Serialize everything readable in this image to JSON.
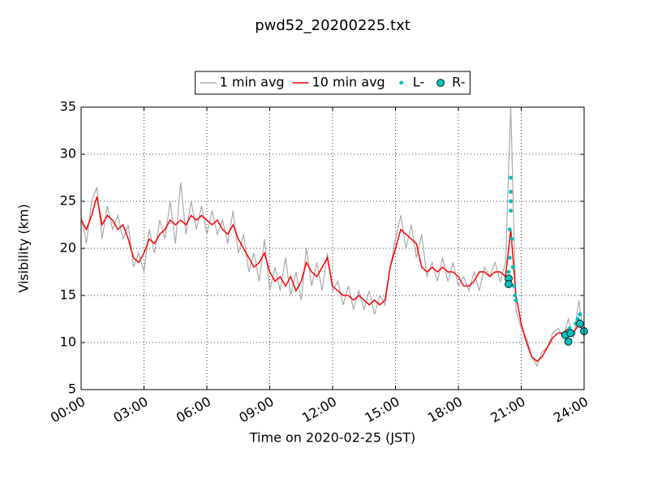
{
  "chart_data": {
    "type": "line",
    "title": "pwd52_20200225.txt",
    "xlabel": "Time on 2020-02-25 (JST)",
    "ylabel": "Visibility (km)",
    "xlim": [
      0,
      24
    ],
    "xticks": [
      {
        "value": 0,
        "label": "00:00"
      },
      {
        "value": 3,
        "label": "03:00"
      },
      {
        "value": 6,
        "label": "06:00"
      },
      {
        "value": 9,
        "label": "09:00"
      },
      {
        "value": 12,
        "label": "12:00"
      },
      {
        "value": 15,
        "label": "15:00"
      },
      {
        "value": 18,
        "label": "18:00"
      },
      {
        "value": 21,
        "label": "21:00"
      },
      {
        "value": 24,
        "label": "24:00"
      }
    ],
    "ylim": [
      5,
      35
    ],
    "yticks": [
      5,
      10,
      15,
      20,
      25,
      30,
      35
    ],
    "grid": true,
    "legend": "upper center",
    "series": [
      {
        "name": "1 min avg",
        "color": "#aaaaaa",
        "style": "line",
        "x": [
          0,
          0.25,
          0.5,
          0.75,
          1,
          1.25,
          1.5,
          1.75,
          2,
          2.25,
          2.5,
          2.75,
          3,
          3.25,
          3.5,
          3.75,
          4,
          4.25,
          4.5,
          4.75,
          5,
          5.25,
          5.5,
          5.75,
          6,
          6.25,
          6.5,
          6.75,
          7,
          7.25,
          7.5,
          7.75,
          8,
          8.25,
          8.5,
          8.75,
          9,
          9.25,
          9.5,
          9.75,
          10,
          10.25,
          10.5,
          10.75,
          11,
          11.25,
          11.5,
          11.75,
          12,
          12.25,
          12.5,
          12.75,
          13,
          13.25,
          13.5,
          13.75,
          14,
          14.25,
          14.5,
          14.75,
          15,
          15.25,
          15.5,
          15.75,
          16,
          16.25,
          16.5,
          16.75,
          17,
          17.25,
          17.5,
          17.75,
          18,
          18.25,
          18.5,
          18.75,
          19,
          19.25,
          19.5,
          19.75,
          20,
          20.25,
          20.5,
          20.75,
          21,
          21.25,
          21.5,
          21.75,
          22,
          22.25,
          22.5,
          22.75,
          23,
          23.25,
          23.5,
          23.75,
          24
        ],
        "values": [
          23.5,
          20.5,
          25,
          26.5,
          21,
          24.5,
          22,
          23.5,
          21,
          22.5,
          18,
          19.5,
          17.5,
          22,
          19.5,
          23,
          21,
          25,
          20.5,
          27,
          21.5,
          25,
          22,
          24.5,
          21.5,
          24,
          21.5,
          23,
          20.5,
          24,
          19.5,
          21.5,
          17.5,
          19.5,
          16.5,
          21,
          15.5,
          18,
          15.5,
          19,
          15,
          17.5,
          14.5,
          20,
          16,
          18.5,
          15.5,
          19.5,
          15.5,
          16.5,
          14,
          16,
          13.5,
          15.5,
          13.5,
          15.5,
          13,
          15,
          14,
          18,
          21,
          23.5,
          20,
          22.5,
          19,
          21.5,
          17,
          18.5,
          16.5,
          19,
          16.5,
          18.5,
          16,
          17,
          15.5,
          17.5,
          15.5,
          18,
          17,
          18.5,
          16.5,
          18.5,
          35,
          13.5,
          11.5,
          10.5,
          8.5,
          7.5,
          9,
          9.5,
          11,
          11.5,
          10.5,
          12.5,
          10.5,
          14.5,
          10.5
        ]
      },
      {
        "name": "10 min avg",
        "color": "#ff0000",
        "style": "line",
        "x": [
          0,
          0.25,
          0.5,
          0.75,
          1,
          1.25,
          1.5,
          1.75,
          2,
          2.25,
          2.5,
          2.75,
          3,
          3.25,
          3.5,
          3.75,
          4,
          4.25,
          4.5,
          4.75,
          5,
          5.25,
          5.5,
          5.75,
          6,
          6.25,
          6.5,
          6.75,
          7,
          7.25,
          7.5,
          7.75,
          8,
          8.25,
          8.5,
          8.75,
          9,
          9.25,
          9.5,
          9.75,
          10,
          10.25,
          10.5,
          10.75,
          11,
          11.25,
          11.5,
          11.75,
          12,
          12.25,
          12.5,
          12.75,
          13,
          13.25,
          13.5,
          13.75,
          14,
          14.25,
          14.5,
          14.75,
          15,
          15.25,
          15.5,
          15.75,
          16,
          16.25,
          16.5,
          16.75,
          17,
          17.25,
          17.5,
          17.75,
          18,
          18.25,
          18.5,
          18.75,
          19,
          19.25,
          19.5,
          19.75,
          20,
          20.25,
          20.5,
          20.75,
          21,
          21.25,
          21.5,
          21.75,
          22,
          22.25,
          22.5,
          22.75,
          23,
          23.25,
          23.5,
          23.75,
          24
        ],
        "values": [
          23,
          22,
          23.5,
          25.5,
          22.5,
          23.5,
          23,
          22,
          22.5,
          21,
          19,
          18.5,
          19.5,
          21,
          20.5,
          21.5,
          22,
          23,
          22.5,
          23,
          22.5,
          23.5,
          23,
          23.5,
          23,
          22.5,
          23,
          22,
          21.5,
          22.5,
          21,
          20,
          19,
          18,
          18.5,
          19.5,
          17.5,
          16.5,
          17,
          16,
          17,
          15.5,
          16.5,
          18.5,
          17.5,
          17,
          18,
          19,
          16,
          15.5,
          15,
          15,
          14.5,
          15,
          14.5,
          14,
          14.5,
          14,
          14.5,
          18,
          20,
          22,
          21.5,
          21,
          20.5,
          18,
          17.5,
          18,
          17.5,
          18,
          17.5,
          17.5,
          17,
          16,
          16,
          16.5,
          17.5,
          17.5,
          17,
          17.5,
          17.5,
          17,
          22,
          15,
          12,
          10,
          8.5,
          8,
          8.5,
          9.5,
          10.5,
          11,
          11,
          11.5,
          11,
          12,
          11
        ]
      },
      {
        "name": "L-",
        "color": "#00bfbf",
        "style": "dot",
        "x": [
          20.4,
          20.45,
          20.45,
          20.5,
          20.5,
          20.5,
          20.5,
          20.55,
          20.6,
          20.65,
          20.7,
          20.75,
          23.1,
          23.3,
          23.5,
          23.6,
          23.7,
          23.8,
          23.9,
          24
        ],
        "values": [
          17.5,
          19,
          22,
          24,
          26,
          27.5,
          25,
          21,
          18,
          16,
          15,
          14.5,
          11,
          11.5,
          11,
          12,
          12.5,
          13,
          12,
          11
        ]
      },
      {
        "name": "R-",
        "color": "#00bfbf",
        "style": "circle",
        "x": [
          20.4,
          20.4,
          23.1,
          23.25,
          23.35,
          23.8,
          24
        ],
        "values": [
          16.8,
          16.2,
          10.8,
          10.1,
          11,
          12,
          11.2
        ]
      }
    ]
  }
}
